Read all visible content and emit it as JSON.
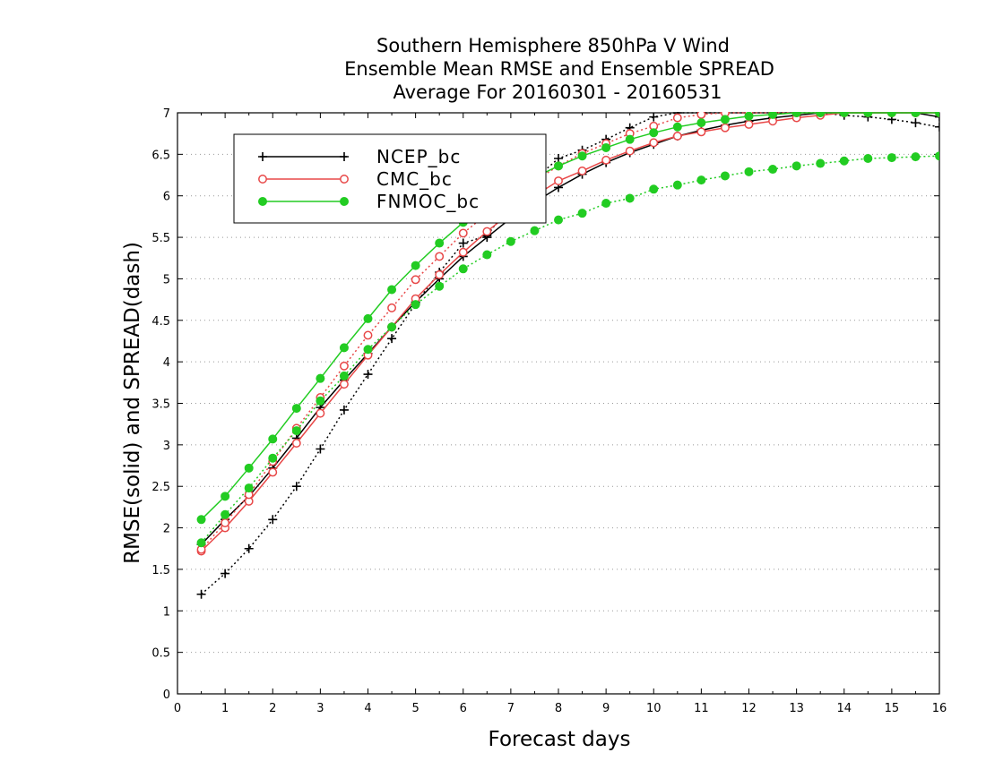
{
  "chart_data": {
    "type": "line",
    "title_lines": [
      "Southern Hemisphere 850hPa V Wind",
      "Ensemble Mean RMSE and Ensemble SPREAD",
      "Average For 20160301 - 20160531"
    ],
    "xlabel": "Forecast days",
    "ylabel": "RMSE(solid) and SPREAD(dash)",
    "xlim": [
      0,
      16
    ],
    "ylim": [
      0,
      7
    ],
    "x_ticks": [
      0,
      1,
      2,
      3,
      4,
      5,
      6,
      7,
      8,
      9,
      10,
      11,
      12,
      13,
      14,
      15,
      16
    ],
    "y_ticks": [
      0,
      0.5,
      1,
      1.5,
      2,
      2.5,
      3,
      3.5,
      4,
      4.5,
      5,
      5.5,
      6,
      6.5,
      7
    ],
    "grid": "horizontal dotted",
    "legend_position": "top-left",
    "legend": [
      "NCEP_bc",
      "CMC_bc",
      "FNMOC_bc"
    ],
    "x": [
      0.5,
      1,
      1.5,
      2,
      2.5,
      3,
      3.5,
      4,
      4.5,
      5,
      5.5,
      6,
      6.5,
      7,
      7.5,
      8,
      8.5,
      9,
      9.5,
      10,
      10.5,
      11,
      11.5,
      12,
      12.5,
      13,
      13.5,
      14,
      14.5,
      15,
      15.5,
      16
    ],
    "series": [
      {
        "name": "NCEP_bc",
        "metric": "RMSE",
        "line": "solid",
        "marker": "plus",
        "color": "#000000",
        "values": [
          1.8,
          2.1,
          2.38,
          2.72,
          3.08,
          3.45,
          3.78,
          4.1,
          4.42,
          4.72,
          5.0,
          5.27,
          5.5,
          5.73,
          5.92,
          6.1,
          6.26,
          6.4,
          6.52,
          6.62,
          6.72,
          6.79,
          6.85,
          6.9,
          6.94,
          6.97,
          7.0,
          7.0,
          7.0,
          7.0,
          7.0,
          6.95
        ]
      },
      {
        "name": "NCEP_bc",
        "metric": "SPREAD",
        "line": "dotted",
        "marker": "plus",
        "color": "#000000",
        "values": [
          1.2,
          1.45,
          1.75,
          2.1,
          2.5,
          2.95,
          3.42,
          3.85,
          4.28,
          4.7,
          5.08,
          5.43,
          5.52,
          5.9,
          6.2,
          6.45,
          6.55,
          6.68,
          6.82,
          6.95,
          7.0,
          7.0,
          7.0,
          7.0,
          7.0,
          7.0,
          7.0,
          6.97,
          6.95,
          6.92,
          6.88,
          6.83
        ]
      },
      {
        "name": "CMC_bc",
        "metric": "RMSE",
        "line": "solid",
        "marker": "circle-open",
        "color": "#e84848",
        "values": [
          1.72,
          2.0,
          2.32,
          2.67,
          3.02,
          3.38,
          3.73,
          4.08,
          4.42,
          4.76,
          5.05,
          5.32,
          5.57,
          5.8,
          6.0,
          6.18,
          6.3,
          6.43,
          6.54,
          6.64,
          6.72,
          6.77,
          6.82,
          6.86,
          6.9,
          6.94,
          6.97,
          7.0,
          7.0,
          7.0,
          7.0,
          7.0
        ]
      },
      {
        "name": "CMC_bc",
        "metric": "SPREAD",
        "line": "dotted",
        "marker": "circle-open",
        "color": "#e84848",
        "values": [
          1.74,
          2.06,
          2.4,
          2.8,
          3.2,
          3.57,
          3.95,
          4.32,
          4.65,
          4.99,
          5.27,
          5.55,
          5.78,
          5.98,
          6.18,
          6.36,
          6.51,
          6.63,
          6.75,
          6.84,
          6.94,
          6.98,
          7.0,
          7.0,
          7.0,
          7.0,
          7.0,
          7.0,
          7.0,
          7.0,
          7.0,
          7.0
        ]
      },
      {
        "name": "FNMOC_bc",
        "metric": "RMSE",
        "line": "solid",
        "marker": "circle-filled",
        "color": "#22cc22",
        "values": [
          2.1,
          2.38,
          2.72,
          3.07,
          3.44,
          3.8,
          4.17,
          4.52,
          4.87,
          5.16,
          5.43,
          5.68,
          5.88,
          6.06,
          6.22,
          6.36,
          6.48,
          6.58,
          6.68,
          6.76,
          6.83,
          6.88,
          6.92,
          6.96,
          6.98,
          7.0,
          7.0,
          7.0,
          7.0,
          7.0,
          7.0,
          7.0
        ]
      },
      {
        "name": "FNMOC_bc",
        "metric": "SPREAD",
        "line": "dotted",
        "marker": "circle-filled",
        "color": "#22cc22",
        "values": [
          1.82,
          2.16,
          2.48,
          2.84,
          3.17,
          3.53,
          3.83,
          4.15,
          4.42,
          4.69,
          4.91,
          5.12,
          5.29,
          5.45,
          5.58,
          5.71,
          5.79,
          5.91,
          5.97,
          6.08,
          6.13,
          6.19,
          6.24,
          6.29,
          6.32,
          6.36,
          6.39,
          6.42,
          6.45,
          6.46,
          6.47,
          6.48
        ]
      }
    ]
  }
}
